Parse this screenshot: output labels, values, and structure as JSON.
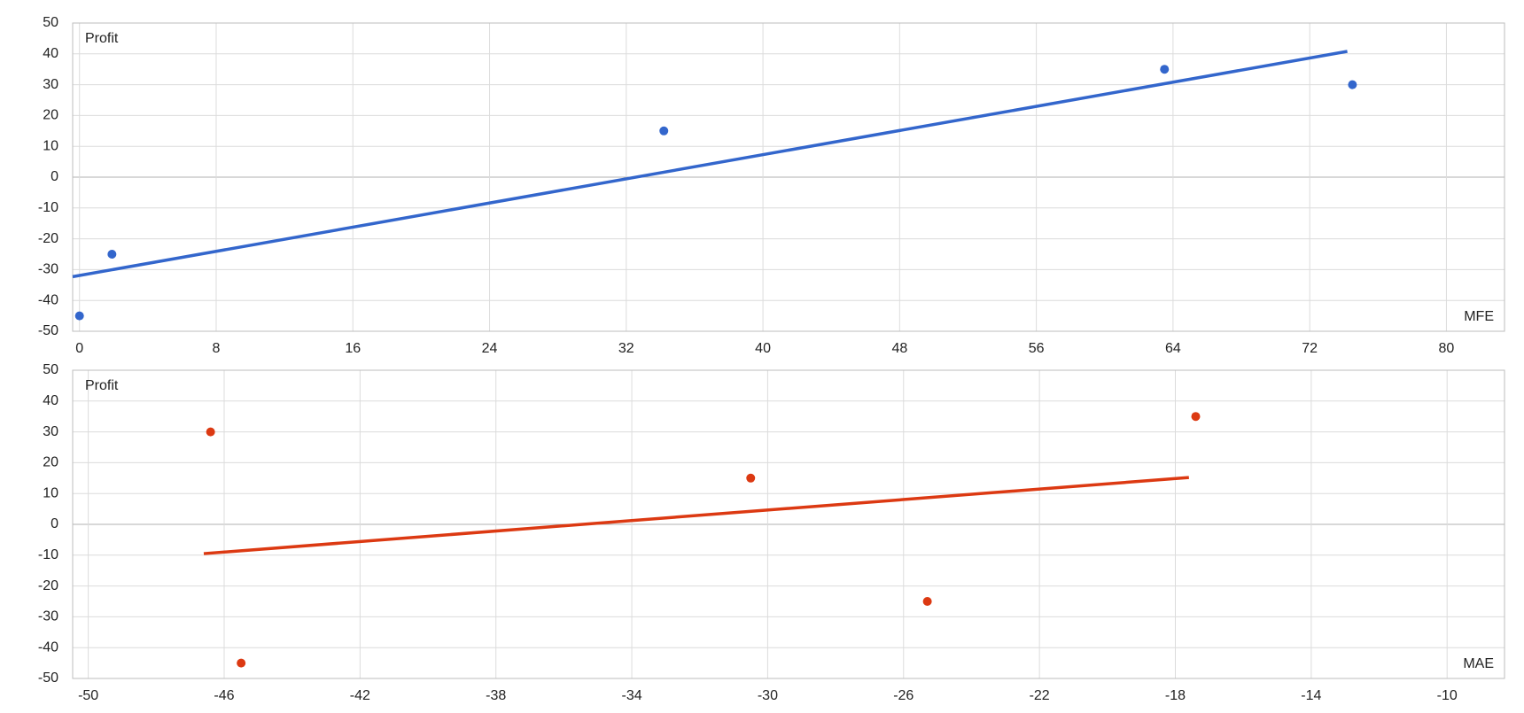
{
  "chart_data": [
    {
      "type": "scatter",
      "ylabel": "Profit",
      "xlabel": "MFE",
      "series": [
        {
          "color": "#3366cc",
          "x": [
            0,
            1.9,
            34.2,
            63.5,
            74.5
          ],
          "values": [
            -45,
            -25,
            15,
            35,
            30
          ]
        }
      ],
      "trendline": {
        "color": "#3366cc",
        "x": [
          -0.4,
          74.2
        ],
        "values": [
          -32.3,
          40.8
        ]
      },
      "xlim": [
        -0.4,
        83.4
      ],
      "xticks": [
        0,
        8,
        16,
        24,
        32,
        40,
        48,
        56,
        64,
        72,
        80
      ],
      "ylim": [
        -50,
        50
      ],
      "yticks": [
        -50,
        -40,
        -30,
        -20,
        -10,
        0,
        10,
        20,
        30,
        40,
        50
      ],
      "grid": true
    },
    {
      "type": "scatter",
      "ylabel": "Profit",
      "xlabel": "MAE",
      "series": [
        {
          "color": "#dc3912",
          "x": [
            -46.4,
            -45.5,
            -30.5,
            -25.3,
            -17.4
          ],
          "values": [
            30,
            -45,
            15,
            -25,
            35
          ]
        }
      ],
      "trendline": {
        "color": "#dc3912",
        "x": [
          -46.6,
          -17.6
        ],
        "values": [
          -9.5,
          15.2
        ]
      },
      "xlim": [
        -50.46,
        -8.31
      ],
      "xticks": [
        -50,
        -46,
        -42,
        -38,
        -34,
        -30,
        -26,
        -22,
        -18,
        -14,
        -10
      ],
      "ylim": [
        -50,
        50
      ],
      "yticks": [
        -50,
        -40,
        -30,
        -20,
        -10,
        0,
        10,
        20,
        30,
        40,
        50
      ],
      "grid": true
    }
  ]
}
